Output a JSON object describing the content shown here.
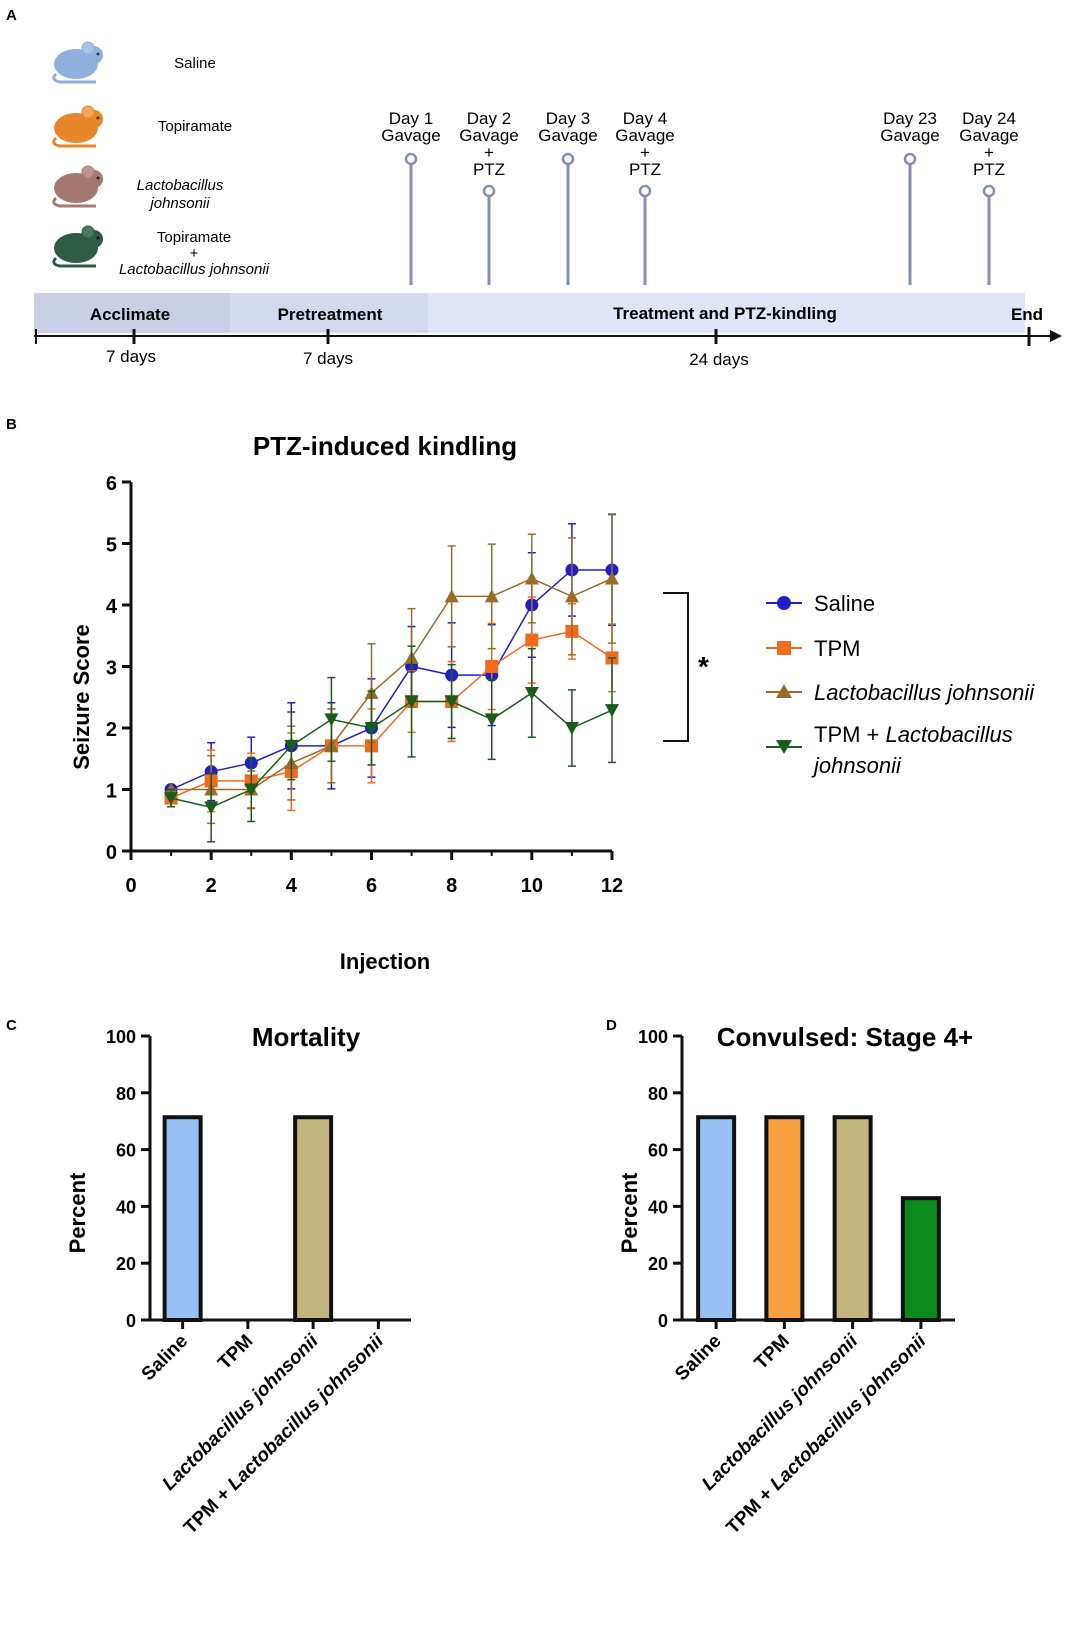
{
  "panels": {
    "a": {
      "letter": "A"
    },
    "b": {
      "letter": "B"
    },
    "c": {
      "letter": "C"
    },
    "d": {
      "letter": "D"
    }
  },
  "groups": {
    "saline": "Saline",
    "topiramate": "Topiramate",
    "lj_line1": "Lactobacillus",
    "lj_line2": "johnsonii",
    "combo_line1": "Topiramate",
    "combo_plus": "+",
    "combo_line3": "Lactobacillus johnsonii"
  },
  "colors": {
    "mouse_saline": "#8fb0dc",
    "mouse_topiramate": "#e8862b",
    "mouse_lj": "#a37870",
    "mouse_combo": "#2f5a44",
    "timeline_bg": "#dfe4f7",
    "timeline_dark": "#c9d0e6",
    "pin": "#7f8fb5"
  },
  "timeline": {
    "phases": {
      "acclimate": "Acclimate",
      "pretreatment": "Pretreatment",
      "treatment": "Treatment and PTZ-kindling",
      "end": "End"
    },
    "durations": {
      "acclimate": "7 days",
      "pretreatment": "7 days",
      "treatment": "24 days"
    },
    "events": [
      {
        "lines": [
          "Day 1",
          "Gavage"
        ]
      },
      {
        "lines": [
          "Day 2",
          "Gavage",
          "+",
          "PTZ"
        ]
      },
      {
        "lines": [
          "Day 3",
          "Gavage"
        ]
      },
      {
        "lines": [
          "Day 4",
          "Gavage",
          "+",
          "PTZ"
        ]
      },
      {
        "lines": [
          "Day 23",
          "Gavage"
        ]
      },
      {
        "lines": [
          "Day 24",
          "Gavage",
          "+",
          "PTZ"
        ]
      }
    ]
  },
  "chart_data": [
    {
      "type": "line",
      "title": "PTZ-induced kindling",
      "xlabel": "Injection",
      "ylabel": "Seizure Score",
      "xlim": [
        0,
        12
      ],
      "ylim": [
        0,
        6
      ],
      "xticks": [
        0,
        2,
        4,
        6,
        8,
        10,
        12
      ],
      "yticks": [
        0,
        1,
        2,
        3,
        4,
        5,
        6
      ],
      "x": [
        1,
        2,
        3,
        4,
        5,
        6,
        7,
        8,
        9,
        10,
        11,
        12
      ],
      "series": [
        {
          "name": "Saline",
          "color": "#1f1fc8",
          "marker": "circle",
          "values": [
            1.0,
            1.29,
            1.43,
            1.71,
            1.71,
            2.0,
            3.0,
            2.86,
            2.86,
            4.0,
            4.57,
            4.57
          ],
          "errors": [
            0.0,
            0.47,
            0.42,
            0.7,
            0.7,
            0.8,
            0.65,
            0.85,
            0.82,
            0.85,
            0.75,
            0.9
          ]
        },
        {
          "name": "TPM",
          "color": "#f26b1d",
          "marker": "square",
          "values": [
            0.86,
            1.14,
            1.14,
            1.29,
            1.71,
            1.71,
            2.43,
            2.43,
            3.0,
            3.43,
            3.57,
            3.14
          ],
          "errors": [
            0.14,
            0.5,
            0.45,
            0.63,
            0.6,
            0.6,
            0.5,
            0.65,
            0.7,
            0.7,
            0.45,
            0.55
          ]
        },
        {
          "name": "Lactobacillus johnsonii",
          "color": "#9b6b28",
          "marker": "triangle-up",
          "values": [
            1.0,
            1.0,
            1.0,
            1.43,
            1.71,
            2.57,
            3.14,
            4.14,
            4.14,
            4.43,
            4.14,
            4.43
          ],
          "errors": [
            0.0,
            0.55,
            0.3,
            0.6,
            0.6,
            0.8,
            0.8,
            0.82,
            0.85,
            0.72,
            0.95,
            1.05
          ]
        },
        {
          "name": "TPM + Lactobacillus johnsonii",
          "color": "#1a5c1a",
          "marker": "triangle-down",
          "values": [
            0.86,
            0.71,
            1.0,
            1.71,
            2.14,
            2.0,
            2.43,
            2.43,
            2.14,
            2.57,
            2.0,
            2.29
          ],
          "errors": [
            0.14,
            0.56,
            0.52,
            0.55,
            0.68,
            0.6,
            0.9,
            0.6,
            0.65,
            0.72,
            0.62,
            0.85
          ]
        }
      ],
      "legend_labels": {
        "saline": "Saline",
        "tpm": "TPM",
        "lj": "Lactobacillus johnsonii",
        "combo_prefix": "TPM + ",
        "combo_italic_1": "Lactobacillus",
        "combo_italic_2": "johnsonii"
      },
      "significance": "*",
      "legend_position": "right"
    },
    {
      "type": "bar",
      "title": "Mortality",
      "ylabel": "Percent",
      "ylim": [
        0,
        100
      ],
      "yticks": [
        0,
        20,
        40,
        60,
        80,
        100
      ],
      "categories": [
        "Saline",
        "TPM",
        "Lactobacillus johnsonii",
        "TPM + Lactobacillus johnsonii"
      ],
      "values": [
        71.4,
        0,
        71.4,
        0
      ],
      "colors": [
        "#97c1f5",
        "#f9a040",
        "#c2b57e",
        "#0a8a1c"
      ]
    },
    {
      "type": "bar",
      "title": "Convulsed: Stage 4+",
      "ylabel": "Percent",
      "ylim": [
        0,
        100
      ],
      "yticks": [
        0,
        20,
        40,
        60,
        80,
        100
      ],
      "categories": [
        "Saline",
        "TPM",
        "Lactobacillus johnsonii",
        "TPM + Lactobacillus johnsonii"
      ],
      "values": [
        71.4,
        71.4,
        71.4,
        42.9
      ],
      "colors": [
        "#97c1f5",
        "#f9a040",
        "#c2b57e",
        "#0a8a1c"
      ]
    }
  ]
}
